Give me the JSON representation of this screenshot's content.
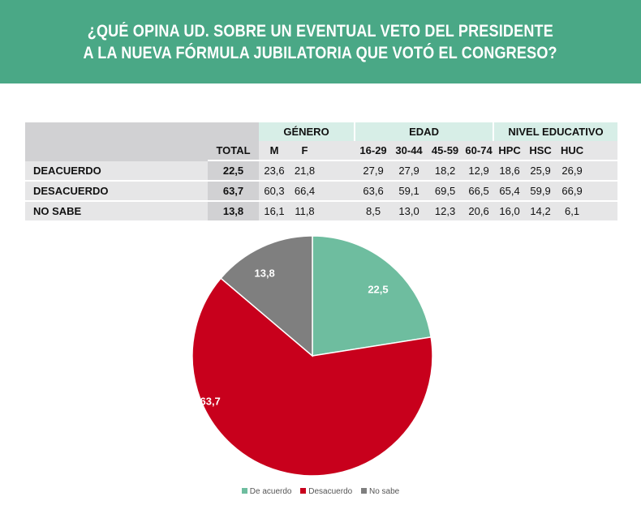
{
  "title": {
    "line1": "¿QUÉ OPINA UD. SOBRE UN EVENTUAL VETO DEL PRESIDENTE",
    "line2": "A LA NUEVA FÓRMULA JUBILATORIA QUE VOTÓ EL CONGRESO?"
  },
  "table": {
    "groups": {
      "genero": "GÉNERO",
      "edad": "EDAD",
      "nivel": "NIVEL EDUCATIVO"
    },
    "columns": [
      "TOTAL",
      "M",
      "F",
      "16-29",
      "30-44",
      "45-59",
      "60-74",
      "HPC",
      "HSC",
      "HUC"
    ],
    "rows": [
      {
        "label": "DEACUERDO",
        "values": [
          "22,5",
          "23,6",
          "21,8",
          "27,9",
          "27,9",
          "18,2",
          "12,9",
          "18,6",
          "25,9",
          "26,9"
        ]
      },
      {
        "label": "DESACUERDO",
        "values": [
          "63,7",
          "60,3",
          "66,4",
          "63,6",
          "59,1",
          "69,5",
          "66,5",
          "65,4",
          "59,9",
          "66,9"
        ]
      },
      {
        "label": "NO SABE",
        "values": [
          "13,8",
          "16,1",
          "11,8",
          "8,5",
          "13,0",
          "12,3",
          "20,6",
          "16,0",
          "14,2",
          "6,1"
        ]
      }
    ]
  },
  "chart_data": {
    "type": "pie",
    "title": "¿QUÉ OPINA UD. SOBRE UN EVENTUAL VETO DEL PRESIDENTE A LA NUEVA FÓRMULA JUBILATORIA QUE VOTÓ EL CONGRESO?",
    "categories": [
      "De acuerdo",
      "Desacuerdo",
      "No sabe"
    ],
    "values": [
      22.5,
      63.7,
      13.8
    ],
    "labels": [
      "22,5",
      "63,7",
      "13,8"
    ],
    "colors": [
      "#6ebd9f",
      "#c8001c",
      "#7f7f7f"
    ],
    "legend": "bottom"
  },
  "legend": {
    "items": [
      {
        "label": "De acuerdo",
        "color": "#6ebd9f"
      },
      {
        "label": "Desacuerdo",
        "color": "#c8001c"
      },
      {
        "label": "No sabe",
        "color": "#7f7f7f"
      }
    ]
  }
}
